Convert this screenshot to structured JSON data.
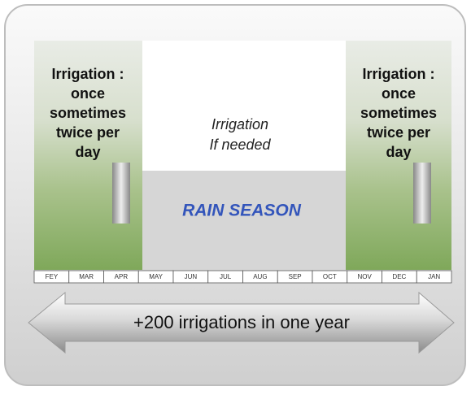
{
  "left_note": [
    "Irrigation :",
    "once",
    "sometimes",
    "twice per",
    "day"
  ],
  "middle_note": [
    "Irrigation",
    "If needed"
  ],
  "rain_label": "RAIN SEASON",
  "right_note": [
    "Irrigation :",
    "once",
    "sometimes",
    "twice per",
    "day"
  ],
  "months": [
    "FEY",
    "MAR",
    "APR",
    "MAY",
    "JUN",
    "JUL",
    "AUG",
    "SEP",
    "OCT",
    "NOV",
    "DEC",
    "JAN"
  ],
  "arrow_label": "+200 irrigations in one year"
}
